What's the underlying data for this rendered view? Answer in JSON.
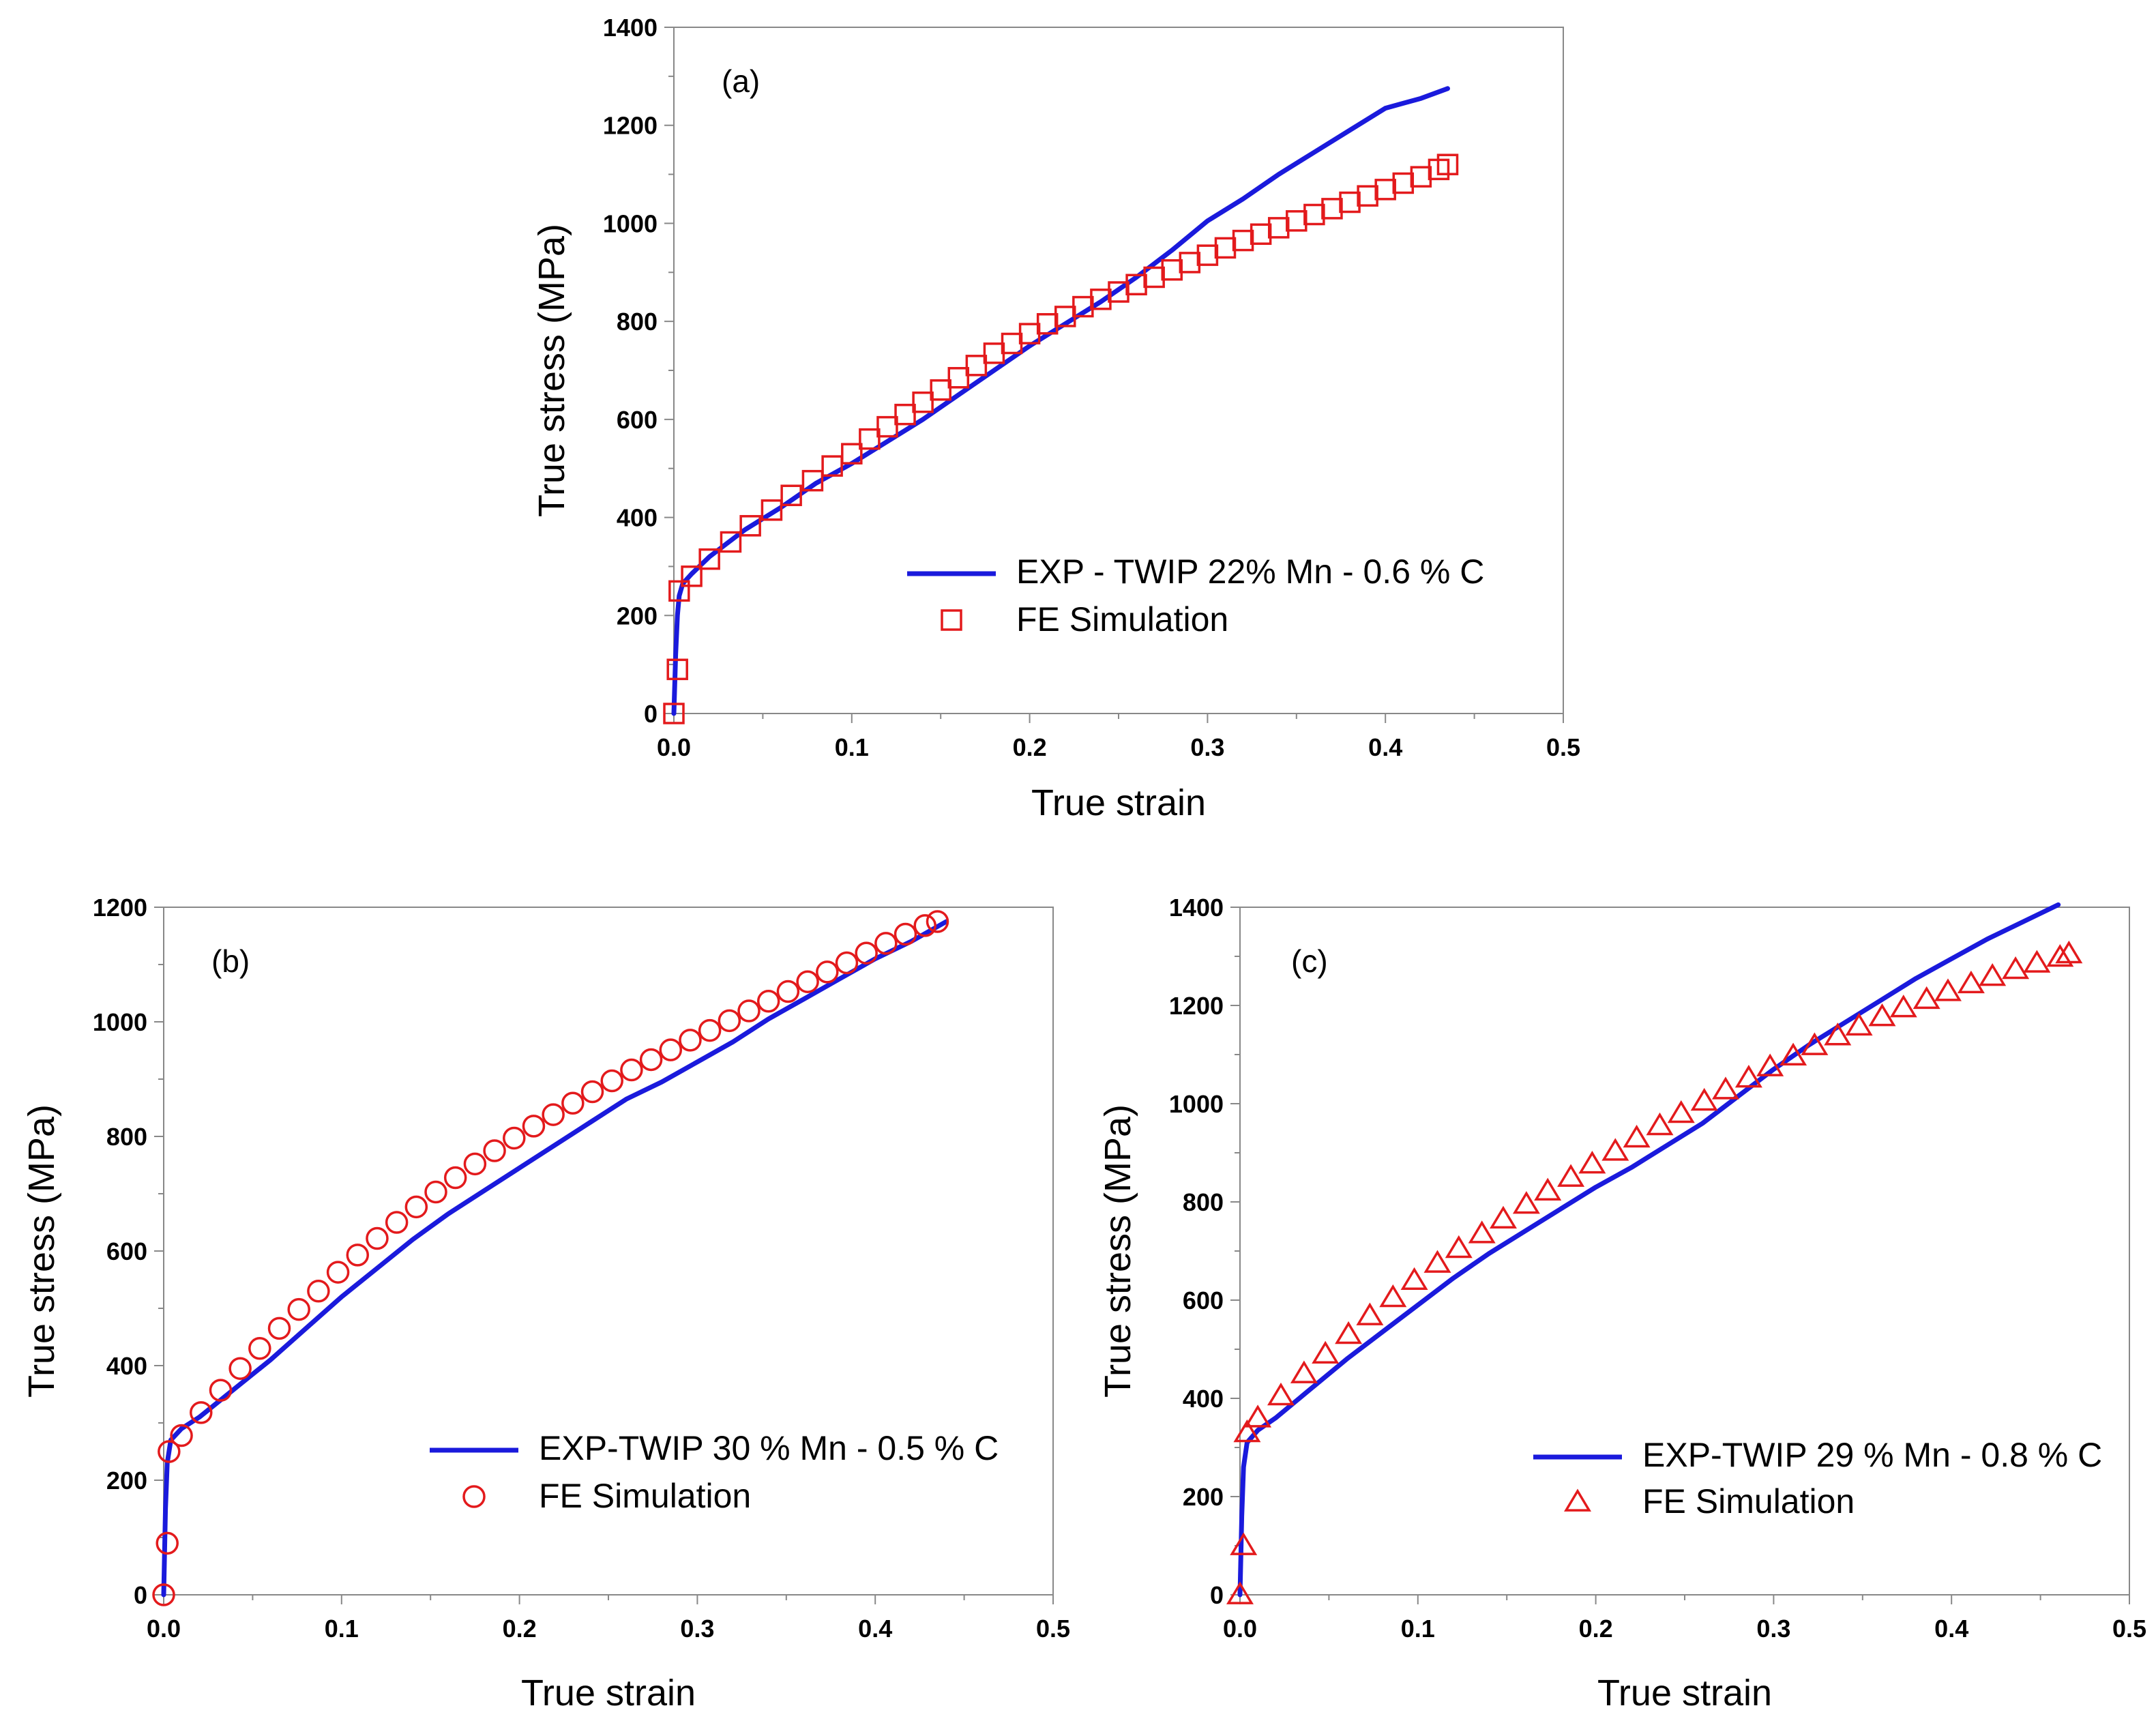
{
  "colors": {
    "exp_line": "#1a1adc",
    "fe_marker": "#e31a1c",
    "axis": "#888888"
  },
  "chart_data": [
    {
      "type": "line",
      "panel_label": "(a)",
      "xlabel": "True strain",
      "ylabel": "True stress (MPa)",
      "xlim": [
        0,
        0.5
      ],
      "ylim": [
        0,
        1400
      ],
      "xticks": [
        "0.0",
        "0.1",
        "0.2",
        "0.3",
        "0.4",
        "0.5"
      ],
      "yticks": [
        "0",
        "200",
        "400",
        "600",
        "800",
        "1000",
        "1200",
        "1400"
      ],
      "grid": false,
      "legend_position": "bottom-right",
      "marker": "square",
      "series": [
        {
          "name": "EXP - TWIP 22% Mn - 0.6 % C",
          "style": "line",
          "x": [
            0,
            0.001,
            0.002,
            0.003,
            0.005,
            0.01,
            0.02,
            0.04,
            0.06,
            0.08,
            0.1,
            0.12,
            0.14,
            0.16,
            0.18,
            0.2,
            0.22,
            0.24,
            0.26,
            0.28,
            0.3,
            0.32,
            0.34,
            0.36,
            0.38,
            0.4,
            0.41,
            0.42,
            0.435
          ],
          "y": [
            0,
            120,
            200,
            240,
            265,
            285,
            320,
            375,
            420,
            470,
            510,
            555,
            600,
            650,
            700,
            750,
            795,
            840,
            890,
            945,
            1005,
            1050,
            1100,
            1145,
            1190,
            1235,
            1245,
            1255,
            1275
          ]
        },
        {
          "name": "FE Simulation",
          "style": "marker",
          "x": [
            0,
            0.002,
            0.003,
            0.01,
            0.02,
            0.032,
            0.043,
            0.055,
            0.066,
            0.078,
            0.089,
            0.1,
            0.11,
            0.12,
            0.13,
            0.14,
            0.15,
            0.16,
            0.17,
            0.18,
            0.19,
            0.2,
            0.21,
            0.22,
            0.23,
            0.24,
            0.25,
            0.26,
            0.27,
            0.28,
            0.29,
            0.3,
            0.31,
            0.32,
            0.33,
            0.34,
            0.35,
            0.36,
            0.37,
            0.38,
            0.39,
            0.4,
            0.41,
            0.42,
            0.43,
            0.435
          ],
          "y": [
            0,
            90,
            250,
            280,
            315,
            350,
            383,
            415,
            445,
            475,
            505,
            530,
            560,
            585,
            610,
            635,
            660,
            685,
            710,
            735,
            755,
            775,
            795,
            810,
            830,
            845,
            860,
            875,
            890,
            905,
            920,
            935,
            950,
            965,
            978,
            991,
            1005,
            1018,
            1030,
            1043,
            1056,
            1069,
            1082,
            1095,
            1110,
            1120
          ]
        }
      ]
    },
    {
      "type": "line",
      "panel_label": "(b)",
      "xlabel": "True strain",
      "ylabel": "True stress (MPa)",
      "xlim": [
        0,
        0.5
      ],
      "ylim": [
        0,
        1200
      ],
      "xticks": [
        "0.0",
        "0.1",
        "0.2",
        "0.3",
        "0.4",
        "0.5"
      ],
      "yticks": [
        "0",
        "200",
        "400",
        "600",
        "800",
        "1000",
        "1200"
      ],
      "grid": false,
      "legend_position": "bottom-right",
      "marker": "circle",
      "series": [
        {
          "name": "EXP-TWIP 30 % Mn - 0.5 % C",
          "style": "line",
          "x": [
            0,
            0.001,
            0.002,
            0.004,
            0.01,
            0.02,
            0.04,
            0.06,
            0.08,
            0.1,
            0.12,
            0.14,
            0.16,
            0.18,
            0.2,
            0.22,
            0.24,
            0.26,
            0.28,
            0.3,
            0.32,
            0.34,
            0.36,
            0.38,
            0.4,
            0.42,
            0.44
          ],
          "y": [
            0,
            150,
            230,
            270,
            290,
            310,
            360,
            410,
            465,
            520,
            570,
            620,
            665,
            705,
            745,
            785,
            825,
            865,
            895,
            930,
            965,
            1005,
            1040,
            1075,
            1110,
            1140,
            1175
          ]
        },
        {
          "name": "FE Simulation",
          "style": "marker",
          "x": [
            0,
            0.002,
            0.003,
            0.01,
            0.021,
            0.032,
            0.043,
            0.054,
            0.065,
            0.076,
            0.087,
            0.098,
            0.109,
            0.12,
            0.131,
            0.142,
            0.153,
            0.164,
            0.175,
            0.186,
            0.197,
            0.208,
            0.219,
            0.23,
            0.241,
            0.252,
            0.263,
            0.274,
            0.285,
            0.296,
            0.307,
            0.318,
            0.329,
            0.34,
            0.351,
            0.362,
            0.373,
            0.384,
            0.395,
            0.406,
            0.417,
            0.428,
            0.435
          ],
          "y": [
            0,
            90,
            250,
            278,
            318,
            357,
            395,
            430,
            465,
            498,
            530,
            563,
            593,
            622,
            650,
            677,
            703,
            728,
            752,
            775,
            797,
            818,
            838,
            858,
            878,
            897,
            916,
            934,
            951,
            968,
            985,
            1002,
            1019,
            1036,
            1053,
            1070,
            1087,
            1103,
            1120,
            1137,
            1153,
            1168,
            1175
          ]
        }
      ]
    },
    {
      "type": "line",
      "panel_label": "(c)",
      "xlabel": "True strain",
      "ylabel": "True stress (MPa)",
      "xlim": [
        0,
        0.5
      ],
      "ylim": [
        0,
        1400
      ],
      "xticks": [
        "0.0",
        "0.1",
        "0.2",
        "0.3",
        "0.4",
        "0.5"
      ],
      "yticks": [
        "0",
        "200",
        "400",
        "600",
        "800",
        "1000",
        "1200",
        "1400"
      ],
      "grid": false,
      "legend_position": "bottom-right",
      "marker": "triangle",
      "series": [
        {
          "name": "EXP-TWIP 29 % Mn - 0.8 % C",
          "style": "line",
          "x": [
            0,
            0.001,
            0.002,
            0.004,
            0.01,
            0.02,
            0.04,
            0.06,
            0.08,
            0.1,
            0.12,
            0.14,
            0.16,
            0.18,
            0.2,
            0.22,
            0.24,
            0.26,
            0.28,
            0.3,
            0.32,
            0.34,
            0.36,
            0.38,
            0.4,
            0.42,
            0.44,
            0.46
          ],
          "y": [
            0,
            160,
            260,
            310,
            335,
            360,
            420,
            480,
            535,
            590,
            645,
            695,
            740,
            785,
            830,
            870,
            915,
            960,
            1015,
            1070,
            1120,
            1165,
            1210,
            1255,
            1295,
            1335,
            1370,
            1405
          ]
        },
        {
          "name": "FE Simulation",
          "style": "marker",
          "x": [
            0,
            0.002,
            0.004,
            0.01,
            0.023,
            0.036,
            0.048,
            0.061,
            0.073,
            0.086,
            0.098,
            0.111,
            0.123,
            0.136,
            0.148,
            0.161,
            0.173,
            0.186,
            0.198,
            0.211,
            0.223,
            0.236,
            0.248,
            0.261,
            0.273,
            0.286,
            0.298,
            0.311,
            0.323,
            0.336,
            0.348,
            0.361,
            0.373,
            0.386,
            0.398,
            0.411,
            0.423,
            0.436,
            0.448,
            0.461,
            0.466
          ],
          "y": [
            0,
            100,
            330,
            360,
            405,
            450,
            490,
            530,
            568,
            605,
            640,
            675,
            705,
            735,
            765,
            795,
            822,
            850,
            877,
            903,
            930,
            955,
            980,
            1005,
            1028,
            1052,
            1075,
            1097,
            1118,
            1138,
            1158,
            1177,
            1195,
            1212,
            1228,
            1244,
            1259,
            1273,
            1286,
            1298,
            1305
          ]
        }
      ]
    }
  ]
}
